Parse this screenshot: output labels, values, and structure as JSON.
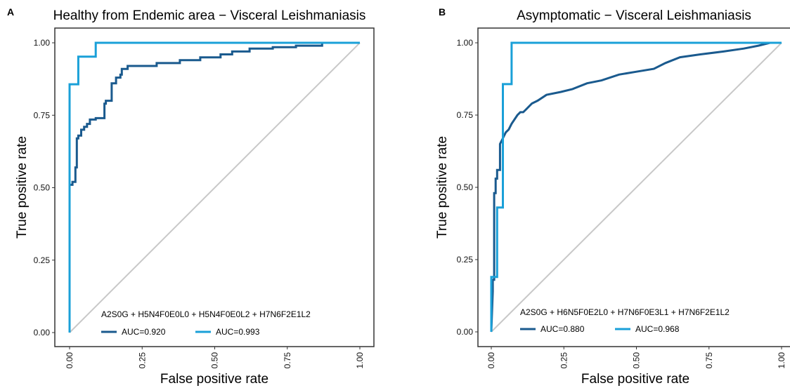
{
  "chart_data": [
    {
      "type": "line",
      "panel_label": "A",
      "title": "Healthy from Endemic area − Visceral Leishmaniasis",
      "xlabel": "False positive rate",
      "ylabel": "True positive rate",
      "xlim": [
        0,
        1
      ],
      "ylim": [
        0,
        1
      ],
      "x_ticks": [
        "0.00",
        "0.25",
        "0.50",
        "0.75",
        "1.00"
      ],
      "y_ticks": [
        "0.00",
        "0.25",
        "0.50",
        "0.75",
        "1.00"
      ],
      "grid": false,
      "diagonal_reference": true,
      "legend_title": "A2S0G + H5N4F0E0L0 + H5N4F0E0L2 + H7N6F2E1L2",
      "legend_position": "bottom",
      "series": [
        {
          "name": "AUC=0.920",
          "color": "#1a5a8e",
          "x": [
            0,
            0,
            0.01,
            0.01,
            0.02,
            0.02,
            0.025,
            0.025,
            0.03,
            0.03,
            0.04,
            0.04,
            0.05,
            0.05,
            0.06,
            0.06,
            0.07,
            0.07,
            0.09,
            0.09,
            0.12,
            0.12,
            0.125,
            0.125,
            0.145,
            0.145,
            0.16,
            0.16,
            0.175,
            0.175,
            0.18,
            0.18,
            0.2,
            0.2,
            0.3,
            0.3,
            0.38,
            0.38,
            0.45,
            0.45,
            0.52,
            0.52,
            0.56,
            0.56,
            0.62,
            0.62,
            0.7,
            0.7,
            0.78,
            0.78,
            0.87,
            0.87,
            1.0
          ],
          "y": [
            0,
            0.51,
            0.51,
            0.52,
            0.52,
            0.57,
            0.57,
            0.67,
            0.67,
            0.68,
            0.68,
            0.7,
            0.7,
            0.71,
            0.71,
            0.72,
            0.72,
            0.735,
            0.735,
            0.74,
            0.74,
            0.79,
            0.79,
            0.8,
            0.8,
            0.86,
            0.86,
            0.88,
            0.88,
            0.89,
            0.89,
            0.91,
            0.91,
            0.92,
            0.92,
            0.93,
            0.93,
            0.94,
            0.94,
            0.95,
            0.95,
            0.96,
            0.96,
            0.97,
            0.97,
            0.98,
            0.98,
            0.985,
            0.985,
            0.99,
            0.99,
            1.0,
            1.0
          ]
        },
        {
          "name": "AUC=0.993",
          "color": "#1aa0d8",
          "x": [
            0,
            0,
            0.03,
            0.03,
            0.09,
            0.09,
            1.0
          ],
          "y": [
            0,
            0.857,
            0.857,
            0.952,
            0.952,
            1.0,
            1.0
          ]
        }
      ]
    },
    {
      "type": "line",
      "panel_label": "B",
      "title": "Asymptomatic − Visceral Leishmaniasis",
      "xlabel": "False positive rate",
      "ylabel": "True positive rate",
      "xlim": [
        0,
        1
      ],
      "ylim": [
        0,
        1
      ],
      "x_ticks": [
        "0.00",
        "0.25",
        "0.50",
        "0.75",
        "1.00"
      ],
      "y_ticks": [
        "0.00",
        "0.25",
        "0.50",
        "0.75",
        "1.00"
      ],
      "grid": false,
      "diagonal_reference": true,
      "legend_title": "A2S0G + H6N5F0E2L0 + H7N6F0E3L1 + H7N6F2E1L2",
      "legend_position": "bottom",
      "series": [
        {
          "name": "AUC=0.880",
          "color": "#1a5a8e",
          "x": [
            0,
            0.005,
            0.005,
            0.01,
            0.01,
            0.015,
            0.015,
            0.02,
            0.02,
            0.03,
            0.03,
            0.04,
            0.05,
            0.06,
            0.07,
            0.09,
            0.1,
            0.11,
            0.12,
            0.14,
            0.16,
            0.19,
            0.24,
            0.28,
            0.33,
            0.38,
            0.44,
            0.5,
            0.56,
            0.6,
            0.65,
            0.72,
            0.8,
            0.87,
            0.92,
            0.96,
            1.0
          ],
          "y": [
            0,
            0.14,
            0.18,
            0.18,
            0.48,
            0.48,
            0.53,
            0.53,
            0.56,
            0.56,
            0.65,
            0.67,
            0.69,
            0.7,
            0.72,
            0.75,
            0.76,
            0.76,
            0.77,
            0.79,
            0.8,
            0.82,
            0.83,
            0.84,
            0.86,
            0.87,
            0.89,
            0.9,
            0.91,
            0.93,
            0.95,
            0.96,
            0.97,
            0.98,
            0.99,
            1.0,
            1.0
          ]
        },
        {
          "name": "AUC=0.968",
          "color": "#1aa0d8",
          "x": [
            0,
            0,
            0.005,
            0.005,
            0.02,
            0.02,
            0.04,
            0.04,
            0.07,
            0.07,
            1.0
          ],
          "y": [
            0,
            0.19,
            0.19,
            0.19,
            0.19,
            0.43,
            0.43,
            0.857,
            0.857,
            1.0,
            1.0
          ]
        }
      ]
    }
  ]
}
